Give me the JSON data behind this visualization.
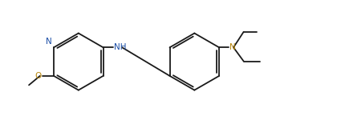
{
  "bg_color": "#ffffff",
  "line_color": "#1a1a1a",
  "N_color": "#1a4da6",
  "O_color": "#b8860b",
  "lw": 1.3,
  "fs": 7.5,
  "fig_width": 4.25,
  "fig_height": 1.45,
  "dpi": 100,
  "xlim": [
    0,
    17
  ],
  "ylim": [
    -3.2,
    3.0
  ]
}
